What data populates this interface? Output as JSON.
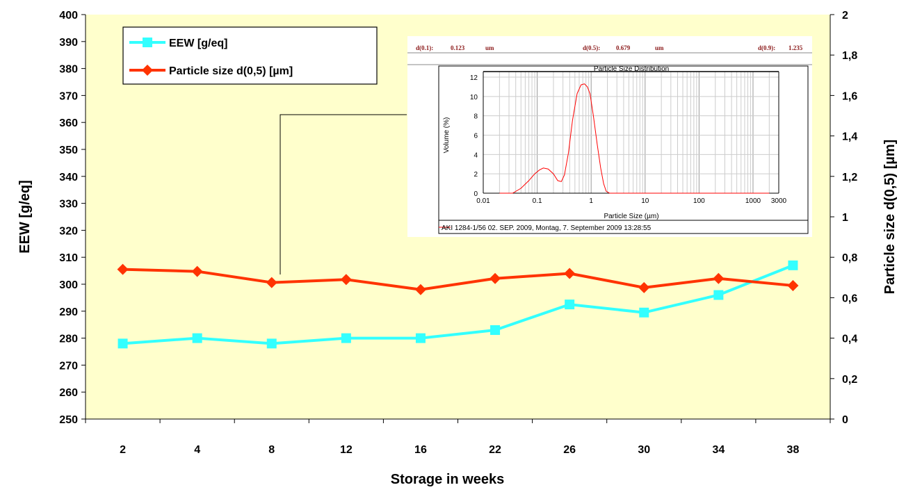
{
  "chart_data": {
    "type": "line",
    "categories": [
      "2",
      "4",
      "8",
      "12",
      "16",
      "22",
      "26",
      "30",
      "34",
      "38"
    ],
    "xlabel": "Storage in weeks",
    "ylabel": "EEW [g/eq]",
    "y2label": "Particle size d(0,5) [µm]",
    "ylim": [
      250,
      400
    ],
    "yticks": [
      "250",
      "260",
      "270",
      "280",
      "290",
      "300",
      "310",
      "320",
      "330",
      "340",
      "350",
      "360",
      "370",
      "380",
      "390",
      "400"
    ],
    "y2lim": [
      0,
      2
    ],
    "y2ticks": [
      "0",
      "0,2",
      "0,4",
      "0,6",
      "0,8",
      "1",
      "1,2",
      "1,4",
      "1,6",
      "1,8",
      "2"
    ],
    "legend_position": "top-left",
    "background": "#ffffcc",
    "series": [
      {
        "name": "EEW [g/eq]",
        "axis": "left",
        "color": "#33ffff",
        "marker": "square",
        "values": [
          278,
          280,
          278,
          280,
          280,
          283,
          292.5,
          289.5,
          296,
          307
        ]
      },
      {
        "name": "Particle size d(0,5) [µm]",
        "axis": "right",
        "color": "#ff3300",
        "marker": "diamond",
        "values": [
          0.74,
          0.73,
          0.675,
          0.69,
          0.64,
          0.695,
          0.72,
          0.65,
          0.695,
          0.66
        ]
      }
    ],
    "inset": {
      "header": {
        "d01_label": "d(0.1):",
        "d01_value": "0.123",
        "d01_unit": "um",
        "d05_label": "d(0.5):",
        "d05_value": "0.679",
        "d05_unit": "um",
        "d09_label": "d(0.9):",
        "d09_value": "1.235"
      },
      "title": "Particle Size Distribution",
      "ylabel": "Volume (%)",
      "xlabel": "Particle Size (µm)",
      "yticks": [
        "0",
        "2",
        "4",
        "6",
        "8",
        "10",
        "12"
      ],
      "xticks": [
        "0.01",
        "0.1",
        "1",
        "10",
        "100",
        "1000",
        "3000"
      ],
      "ylim": [
        0,
        12
      ],
      "xlim": [
        0.01,
        3000
      ],
      "xscale": "log",
      "line_color": "#ff0000",
      "curve_x": [
        0.02,
        0.035,
        0.05,
        0.07,
        0.09,
        0.11,
        0.13,
        0.16,
        0.2,
        0.24,
        0.28,
        0.32,
        0.38,
        0.45,
        0.55,
        0.65,
        0.75,
        0.85,
        0.95,
        1.1,
        1.3,
        1.5,
        1.7,
        1.9,
        2.2,
        5,
        50,
        500,
        2000
      ],
      "curve_y": [
        0,
        0,
        0.5,
        1.3,
        2.0,
        2.4,
        2.6,
        2.5,
        2.0,
        1.3,
        1.2,
        1.9,
        4.2,
        7.5,
        10.3,
        11.2,
        11.3,
        11.0,
        10.3,
        8.0,
        5.0,
        2.6,
        1.0,
        0.2,
        0,
        0,
        0,
        0,
        0
      ],
      "legend_entry": "AKI 1284-1/56 02. SEP. 2009, Montag, 7. September 2009 13:28:55"
    }
  }
}
